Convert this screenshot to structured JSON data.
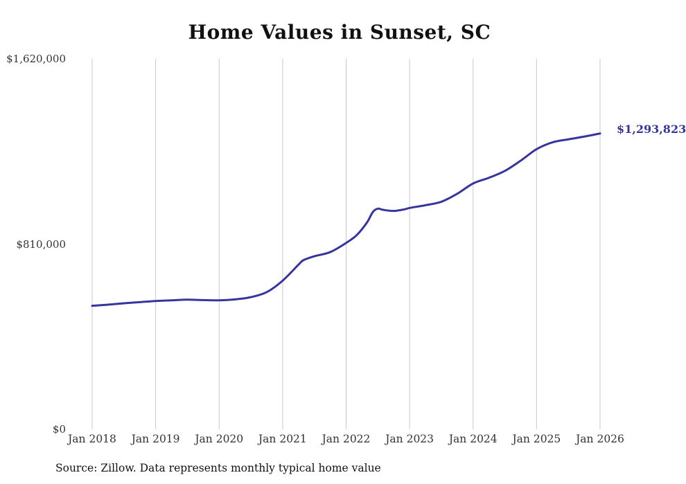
{
  "title": "Home Values in Sunset, SC",
  "source_note": "Source: Zillow. Data represents monthly typical home value",
  "colors": {
    "line": "#36349e",
    "grid": "#c9c9c9",
    "tick_text": "#333333",
    "title_text": "#111111"
  },
  "chart_data": {
    "type": "line",
    "title": "Home Values in Sunset, SC",
    "xlabel": "",
    "ylabel": "",
    "ylim": [
      0,
      1620000
    ],
    "grid": "vertical",
    "legend": "none",
    "end_label": "$1,293,823",
    "y_ticks": [
      {
        "value": 0,
        "label": "$0"
      },
      {
        "value": 810000,
        "label": "$810,000"
      },
      {
        "value": 1620000,
        "label": "$1,620,000"
      }
    ],
    "x_ticks": [
      {
        "t": 2018,
        "label": "Jan 2018"
      },
      {
        "t": 2019,
        "label": "Jan 2019"
      },
      {
        "t": 2020,
        "label": "Jan 2020"
      },
      {
        "t": 2021,
        "label": "Jan 2021"
      },
      {
        "t": 2022,
        "label": "Jan 2022"
      },
      {
        "t": 2023,
        "label": "Jan 2023"
      },
      {
        "t": 2024,
        "label": "Jan 2024"
      },
      {
        "t": 2025,
        "label": "Jan 2025"
      },
      {
        "t": 2026,
        "label": "Jan 2026"
      }
    ],
    "series": [
      {
        "name": "Monthly typical home value",
        "x": [
          2018.0,
          2018.25,
          2018.5,
          2018.75,
          2019.0,
          2019.25,
          2019.5,
          2019.75,
          2020.0,
          2020.25,
          2020.5,
          2020.75,
          2021.0,
          2021.25,
          2021.33,
          2021.5,
          2021.75,
          2022.0,
          2022.17,
          2022.33,
          2022.42,
          2022.5,
          2022.58,
          2022.75,
          2022.92,
          2023.0,
          2023.25,
          2023.5,
          2023.75,
          2024.0,
          2024.25,
          2024.5,
          2024.75,
          2025.0,
          2025.25,
          2025.5,
          2025.75,
          2026.0
        ],
        "values": [
          540000,
          545000,
          551000,
          556000,
          561000,
          564000,
          567000,
          565000,
          564000,
          568000,
          578000,
          600000,
          650000,
          720000,
          740000,
          757000,
          775000,
          815000,
          850000,
          905000,
          950000,
          965000,
          960000,
          955000,
          962000,
          968000,
          980000,
          995000,
          1030000,
          1075000,
          1100000,
          1130000,
          1175000,
          1225000,
          1255000,
          1268000,
          1280000,
          1293823
        ]
      }
    ]
  }
}
